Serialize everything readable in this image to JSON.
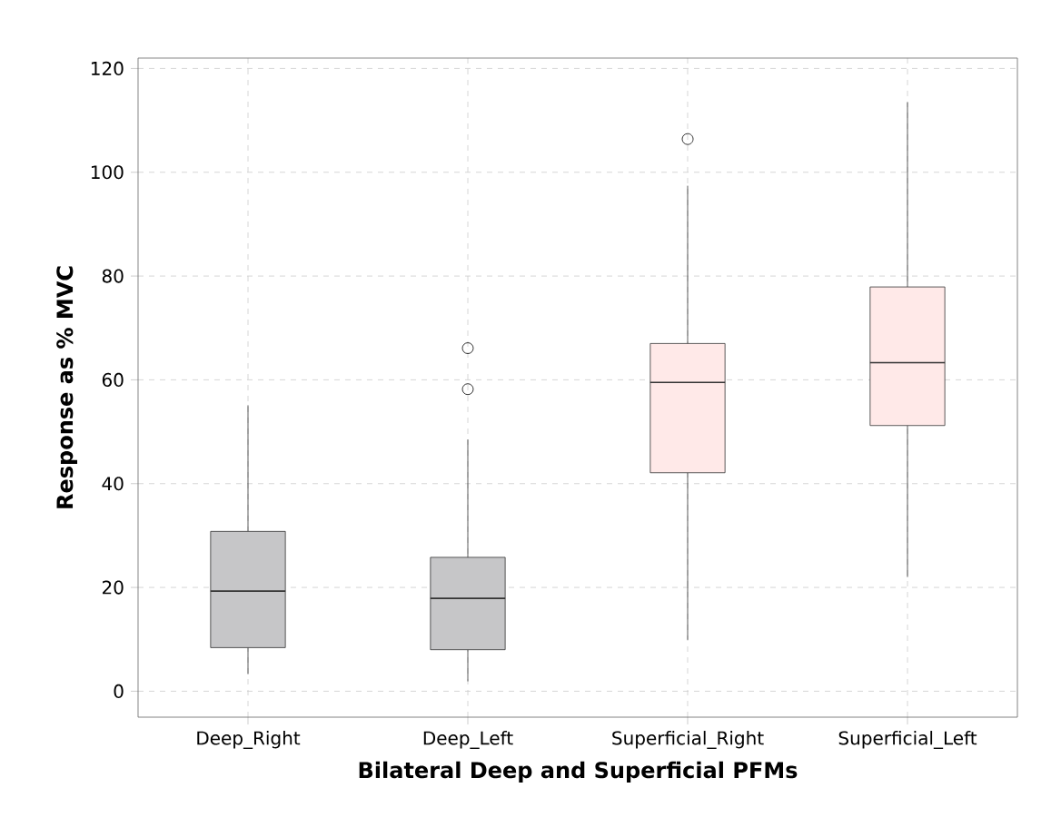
{
  "chart_data": {
    "type": "box",
    "xlabel": "Bilateral Deep and Superficial PFMs",
    "ylabel": "Response as % MVC",
    "categories": [
      "Deep_Right",
      "Deep_Left",
      "Superficial_Right",
      "Superficial_Left"
    ],
    "colors": [
      "#c6c6c8",
      "#c6c6c8",
      "#ffe9e8",
      "#ffe9e8"
    ],
    "boxes": [
      {
        "low": 3.3,
        "q1": 8.4,
        "median": 19.3,
        "q3": 30.8,
        "high": 55.1
      },
      {
        "low": 1.9,
        "q1": 8.0,
        "median": 17.9,
        "q3": 25.8,
        "high": 48.5,
        "outliers": [
          58.2,
          66.1
        ]
      },
      {
        "low": 9.9,
        "q1": 42.1,
        "median": 59.5,
        "q3": 67.0,
        "high": 97.4,
        "outliers": [
          106.4
        ]
      },
      {
        "low": 22.0,
        "q1": 51.2,
        "median": 63.3,
        "q3": 77.9,
        "high": 113.5
      }
    ],
    "ylim": [
      -5,
      122
    ],
    "yticks": [
      0,
      20,
      40,
      60,
      80,
      100,
      120
    ],
    "grid": true,
    "marker": "circle"
  }
}
